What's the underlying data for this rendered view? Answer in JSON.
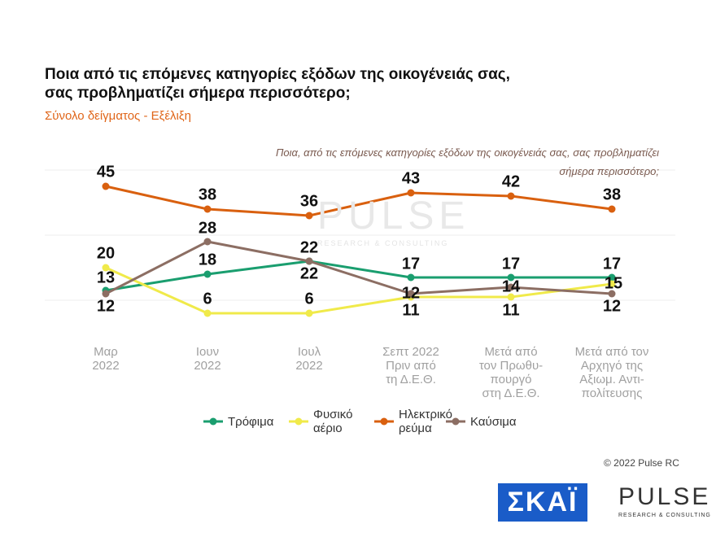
{
  "chart_data": {
    "type": "line",
    "title": "Ποια από τις επόμενες κατηγορίες εξόδων της οικογένειάς σας,\nσας προβληματίζει σήμερα περισσότερο;",
    "subtitle": "Σύνολο δείγματος - Εξέλιξη",
    "annotation": "Ποια, από τις επόμενες κατηγορίες εξόδων της οικογένειάς σας, σας προβληματίζει\nσήμερα περισσότερο;",
    "categories": [
      "Μαρ\n2022",
      "Ιουν\n2022",
      "Ιουλ\n2022",
      "Σεπτ 2022\nΠριν από\nτη Δ.Ε.Θ.",
      "Μετά από\nτον Πρωθυ-\nπουργό\nστη Δ.Ε.Θ.",
      "Μετά από τον\nΑρχηγό της\nΑξιωμ. Αντι-\nπολίτευσης"
    ],
    "series": [
      {
        "name": "Τρόφιμα",
        "color": "#1a9e6f",
        "values": [
          13,
          18,
          22,
          17,
          17,
          17
        ]
      },
      {
        "name": "Φυσικό\nαέριο",
        "color": "#f0ea4a",
        "values": [
          20,
          6,
          6,
          11,
          11,
          15
        ]
      },
      {
        "name": "Ηλεκτρικό\nρεύμα",
        "color": "#d9600f",
        "values": [
          45,
          38,
          36,
          43,
          42,
          38
        ]
      },
      {
        "name": "Καύσιμα",
        "color": "#8c6e63",
        "values": [
          12,
          28,
          22,
          12,
          14,
          12
        ]
      }
    ],
    "ylim": [
      0,
      55
    ],
    "yticks": [
      10,
      30,
      50
    ],
    "grid": true
  },
  "branding": {
    "copyright": "© 2022 Pulse RC",
    "skai": "ΣΚΑΪ",
    "pulse": "PULSE",
    "pulse_tagline": "RESEARCH & CONSULTING"
  }
}
